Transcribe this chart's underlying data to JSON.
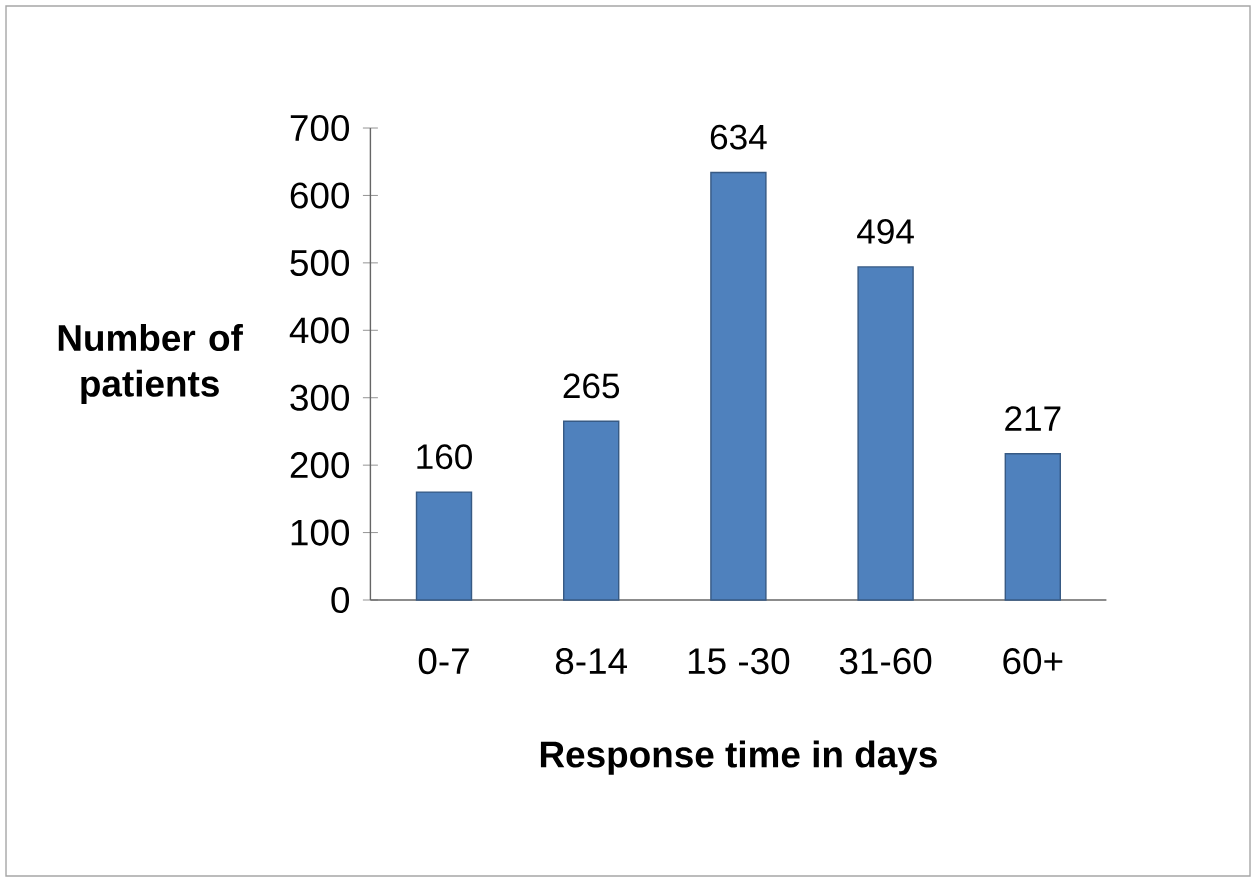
{
  "chart_data": {
    "type": "bar",
    "xlabel": "Response time in days",
    "ylabel": "Number of patients",
    "categories": [
      "0-7",
      "8-14",
      "15 -30",
      "31-60",
      "60+"
    ],
    "values": [
      160,
      265,
      634,
      494,
      217
    ],
    "color": "#4f81bd",
    "ylim": [
      0,
      700
    ],
    "yticks": [
      0,
      100,
      200,
      300,
      400,
      500,
      600,
      700
    ],
    "data_labels": true
  }
}
